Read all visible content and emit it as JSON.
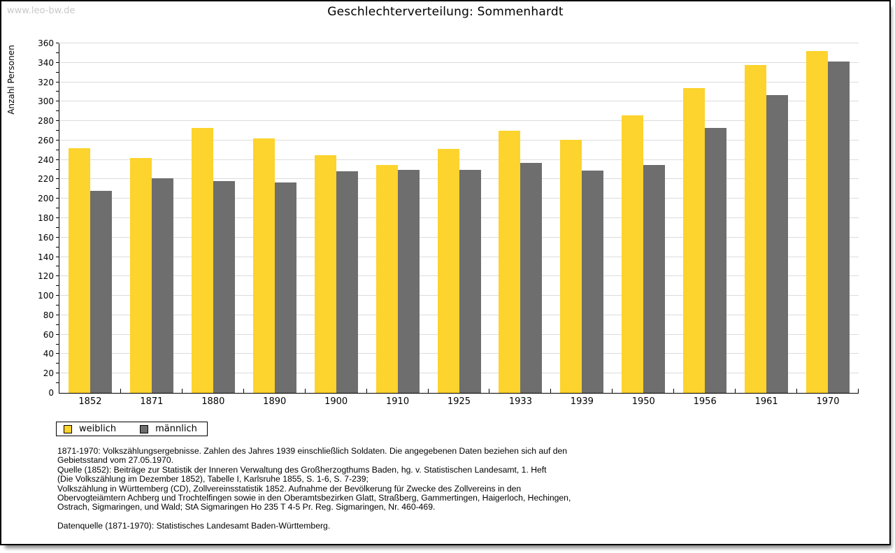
{
  "page": {
    "watermark": "www.leo-bw.de",
    "title": "Geschlechterverteilung: Sommenhardt"
  },
  "chart_data": {
    "type": "bar",
    "title": "Geschlechterverteilung: Sommenhardt",
    "ylabel": "Anzahl Personen",
    "xlabel": "",
    "categories": [
      "1852",
      "1871",
      "1880",
      "1890",
      "1900",
      "1910",
      "1925",
      "1933",
      "1939",
      "1950",
      "1956",
      "1961",
      "1970"
    ],
    "series": [
      {
        "name": "weiblich",
        "color": "#fdd32d",
        "values": [
          252,
          242,
          273,
          262,
          245,
          235,
          251,
          270,
          261,
          286,
          314,
          338,
          352
        ]
      },
      {
        "name": "männlich",
        "color": "#6e6e6e",
        "values": [
          208,
          221,
          218,
          217,
          228,
          230,
          230,
          237,
          229,
          235,
          273,
          307,
          341
        ]
      }
    ],
    "ylim": [
      0,
      360
    ],
    "ytick_step": 20,
    "yminor_step": 10,
    "grid": true,
    "gridline_color": "#dcdcdc",
    "legend_position": "bottom-left"
  },
  "legend": {
    "items": [
      {
        "label": "weiblich",
        "color": "#fdd32d"
      },
      {
        "label": "männlich",
        "color": "#6e6e6e"
      }
    ]
  },
  "footnote": {
    "lines": [
      "1871-1970: Volkszählungsergebnisse. Zahlen des Jahres 1939 einschließlich Soldaten. Die angegebenen Daten beziehen sich auf den",
      "Gebietsstand vom 27.05.1970.",
      "Quelle (1852): Beiträge zur Statistik der Inneren Verwaltung des Großherzogthums Baden, hg. v. Statistischen Landesamt, 1. Heft",
      "(Die Volkszählung im Dezember 1852), Tabelle I, Karlsruhe 1855, S. 1-6, S. 7-239;",
      "Volkszählung in Württemberg (CD), Zollvereinsstatistik 1852. Aufnahme der Bevölkerung für Zwecke des Zollvereins in den",
      "Obervogteiämtern Achberg und Trochtelfingen sowie in den Oberamtsbezirken Glatt, Straßberg, Gammertingen, Haigerloch, Hechingen,",
      "Ostrach, Sigmaringen, und Wald; StA Sigmaringen Ho 235 T 4-5 Pr. Reg. Sigmaringen, Nr. 460-469.",
      "",
      "Datenquelle (1871-1970): Statistisches Landesamt Baden-Württemberg."
    ]
  }
}
